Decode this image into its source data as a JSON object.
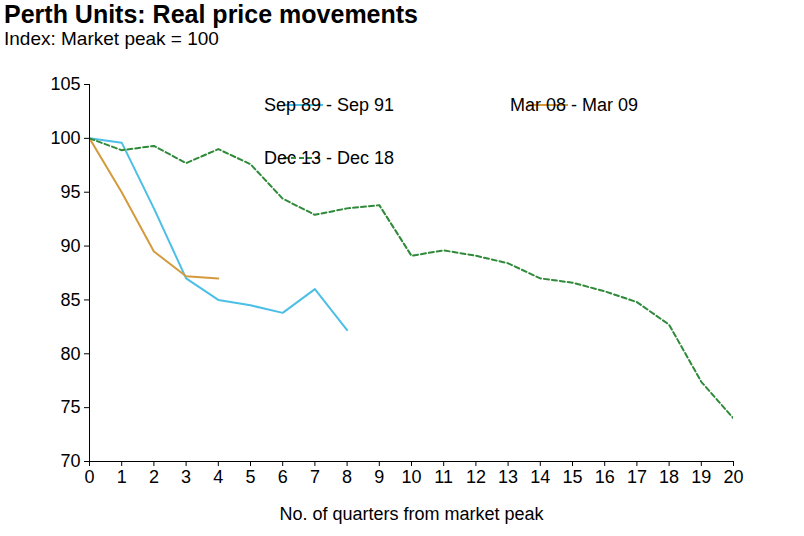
{
  "chart_data": {
    "type": "line",
    "title": "Perth Units: Real price movements",
    "subtitle": "Index: Market peak = 100",
    "x_label": "No. of quarters from market peak",
    "x": [
      0,
      1,
      2,
      3,
      4,
      5,
      6,
      7,
      8,
      9,
      10,
      11,
      12,
      13,
      14,
      15,
      16,
      17,
      18,
      19,
      20
    ],
    "series": [
      {
        "name": "Sep 89 - Sep 91",
        "color": "#4cbfe6",
        "line_style": "solid",
        "values": [
          100,
          99.6,
          93.5,
          87,
          85,
          84.5,
          83.8,
          86,
          82.2,
          null,
          null,
          null,
          null,
          null,
          null,
          null,
          null,
          null,
          null,
          null,
          null
        ]
      },
      {
        "name": "Mar 08 - Mar 09",
        "color": "#d49a3e",
        "line_style": "solid",
        "values": [
          100,
          95,
          89.5,
          87.2,
          87,
          null,
          null,
          null,
          null,
          null,
          null,
          null,
          null,
          null,
          null,
          null,
          null,
          null,
          null,
          null,
          null
        ]
      },
      {
        "name": "Dec 13 - Dec 18",
        "color": "#2f8a3a",
        "line_style": "dashed",
        "values": [
          100,
          98.9,
          99.3,
          97.7,
          99,
          97.6,
          94.4,
          92.9,
          93.5,
          93.8,
          89.1,
          89.6,
          89.1,
          88.4,
          87,
          86.6,
          85.8,
          84.8,
          82.7,
          77.4,
          74
        ]
      }
    ],
    "xlim": [
      0,
      20
    ],
    "xticks": [
      0,
      1,
      2,
      3,
      4,
      5,
      6,
      7,
      8,
      9,
      10,
      11,
      12,
      13,
      14,
      15,
      16,
      17,
      18,
      19,
      20
    ],
    "ylim": [
      70,
      105
    ],
    "yticks": [
      70,
      75,
      80,
      85,
      90,
      95,
      100,
      105
    ],
    "grid": false,
    "legend": "top-right"
  }
}
